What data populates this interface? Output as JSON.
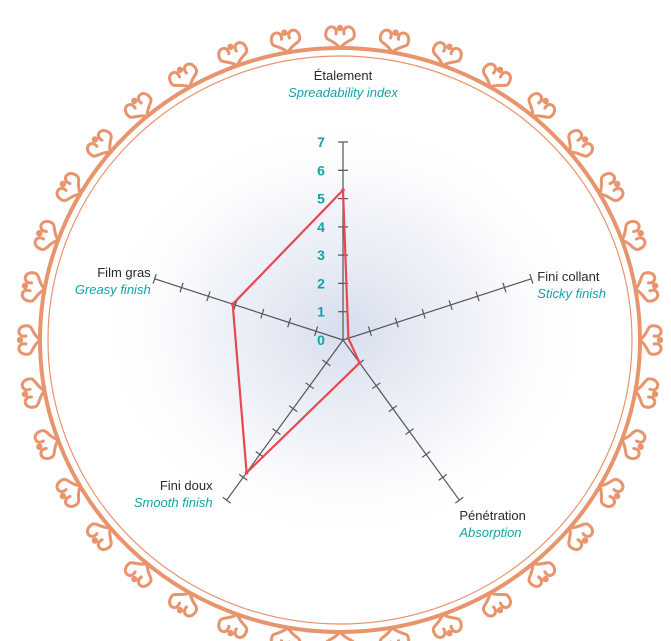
{
  "chart_data": {
    "type": "radar",
    "title": "",
    "scale": {
      "min": 0,
      "max": 7,
      "ticks": [
        "0",
        "1",
        "2",
        "3",
        "4",
        "5",
        "6",
        "7"
      ]
    },
    "axes": [
      {
        "label_fr": "Étalement",
        "label_en": "Spreadability index"
      },
      {
        "label_fr": "Fini collant",
        "label_en": "Sticky finish"
      },
      {
        "label_fr": "Pénétration",
        "label_en": "Absorption"
      },
      {
        "label_fr": "Fini doux",
        "label_en": "Smooth finish"
      },
      {
        "label_fr": "Film gras",
        "label_en": "Greasy finish"
      }
    ],
    "series": [
      {
        "values": [
          5.3,
          0.2,
          1.0,
          5.8,
          4.1
        ]
      }
    ],
    "colors": {
      "series": "#e8474e",
      "axis": "#555555",
      "tick_labels": "#12a3a8",
      "frame": "#e8946c",
      "glow": "#c9d2e6"
    },
    "frame": "ornate-oval-frame"
  }
}
